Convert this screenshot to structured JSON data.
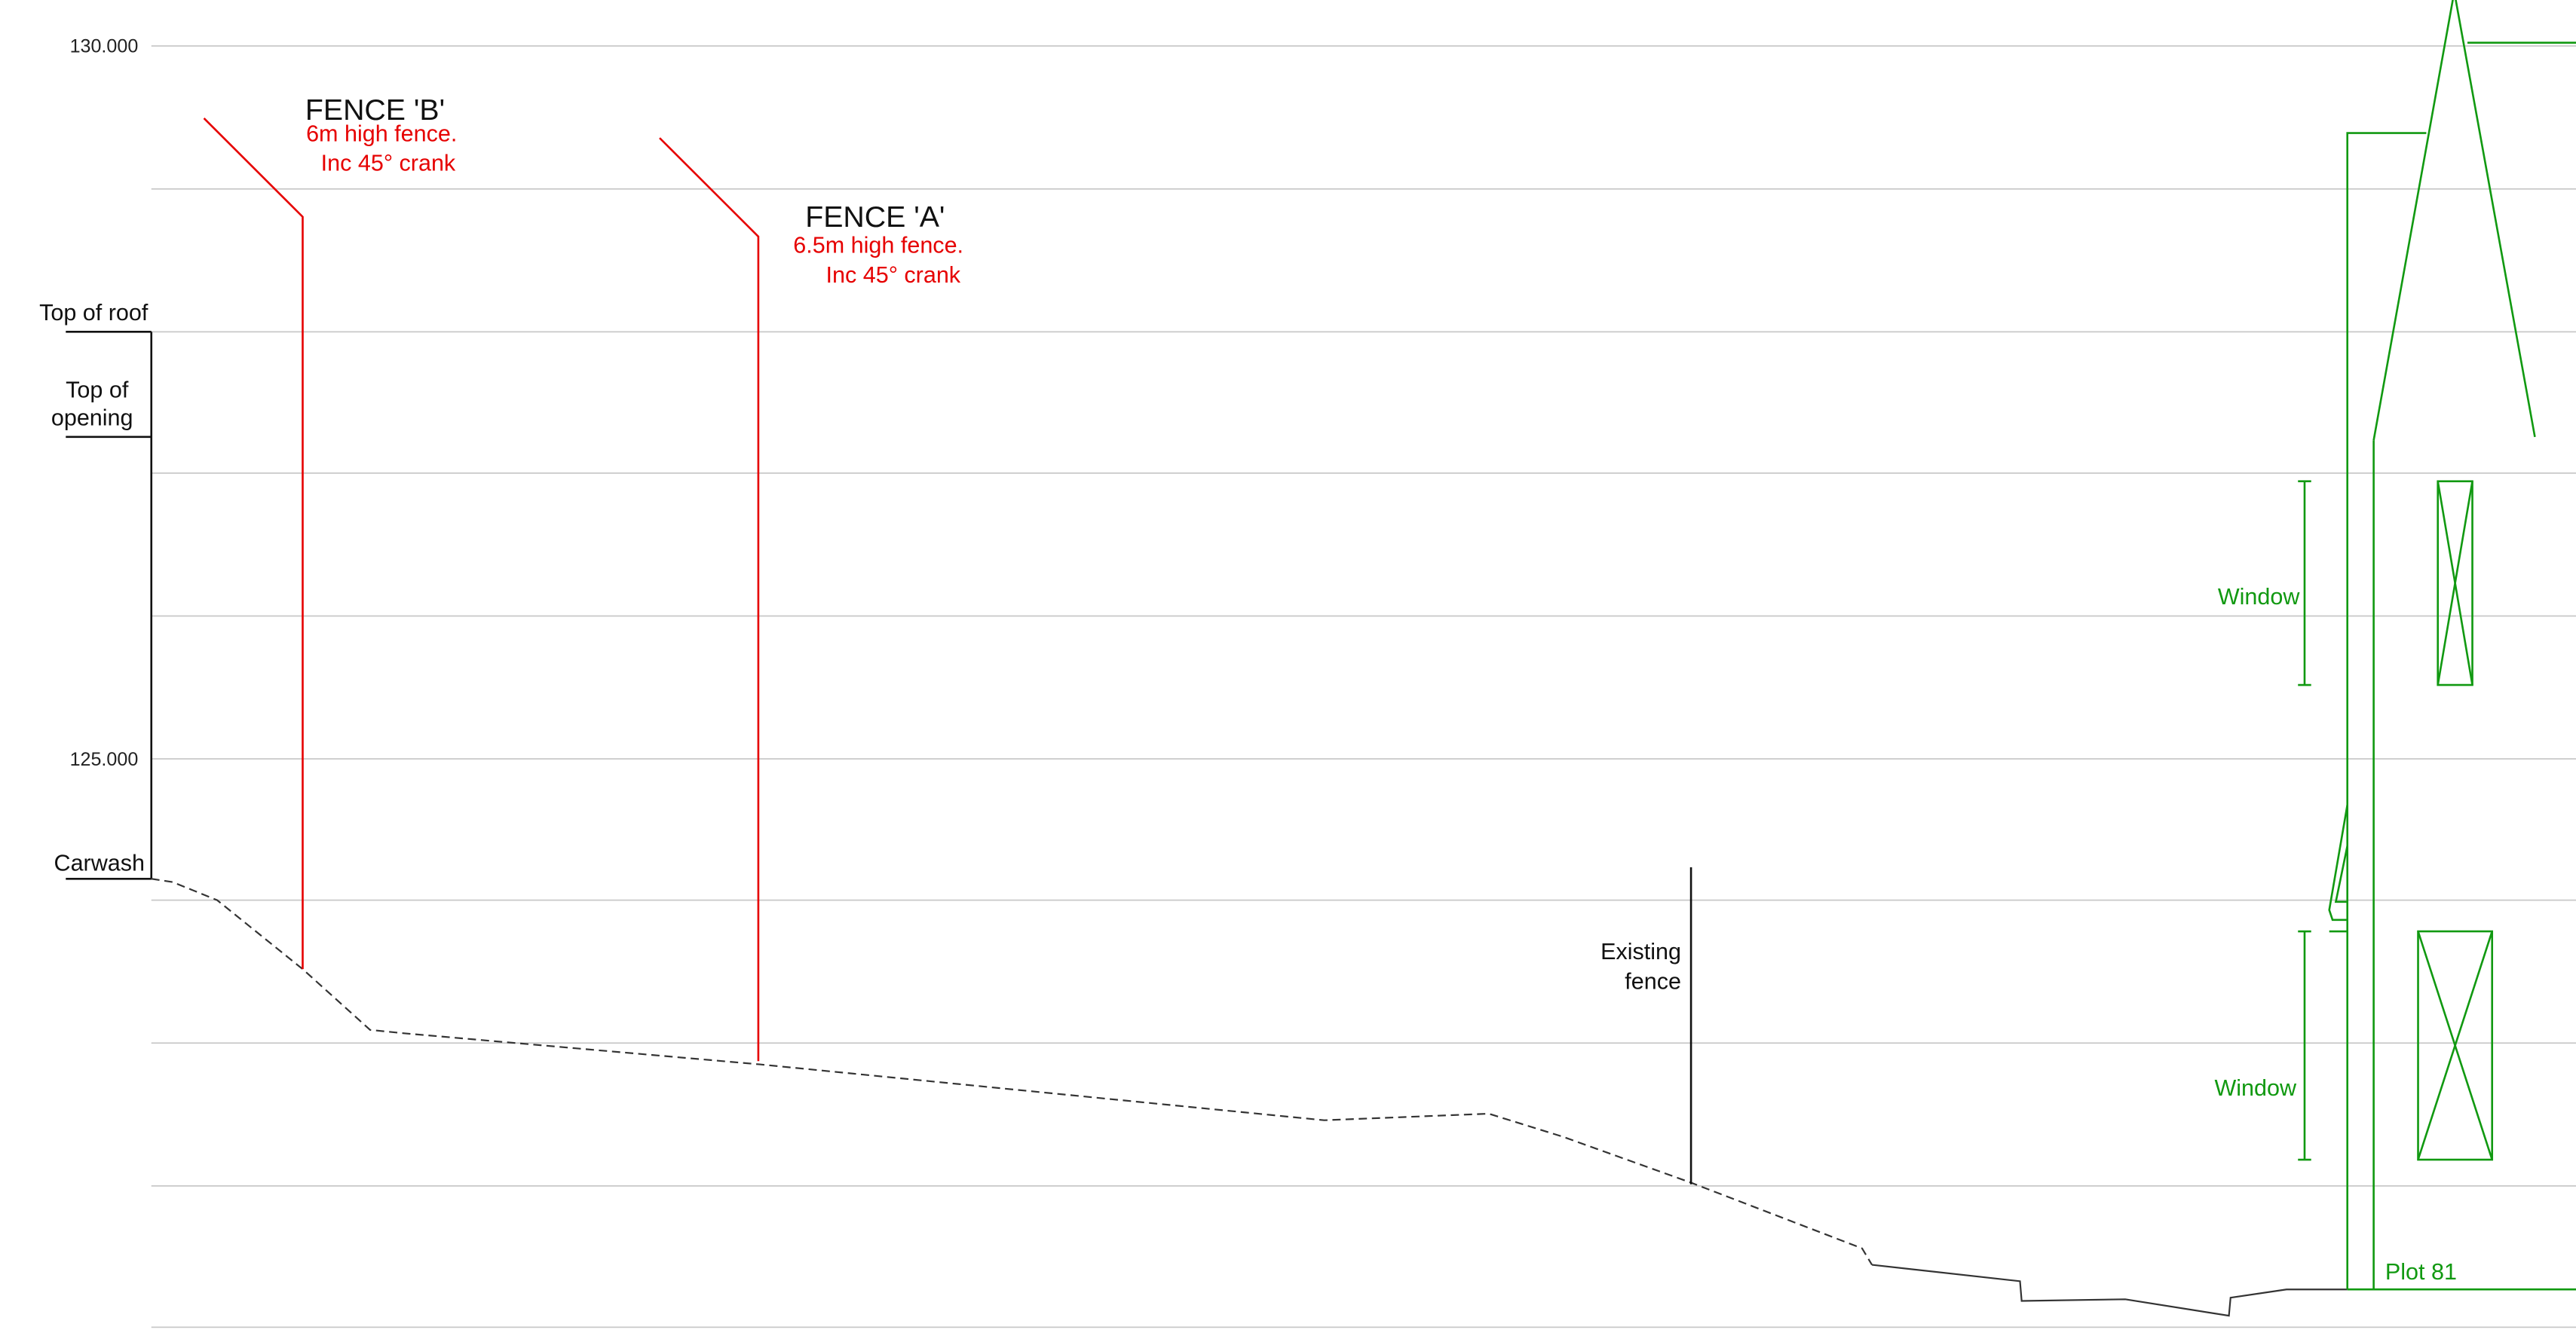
{
  "colors": {
    "grid": "#c8c8c8",
    "fence": "#e60000",
    "building": "#119911",
    "ground": "#333333",
    "annotation": "#111111"
  },
  "levels": {
    "level_130": "130.000",
    "level_125": "125.000"
  },
  "markers": {
    "top_of_roof": "Top of roof",
    "top_of_opening_line1": "Top of",
    "top_of_opening_line2": "opening",
    "carwash": "Carwash"
  },
  "fence_b": {
    "title": "FENCE 'B'",
    "note_line1": "6m high fence.",
    "note_line2": "Inc 45° crank"
  },
  "fence_a": {
    "title": "FENCE 'A'",
    "note_line1": "6.5m high fence.",
    "note_line2": "Inc 45° crank"
  },
  "existing_fence": {
    "line1": "Existing",
    "line2": "fence"
  },
  "building": {
    "window_upper": "Window",
    "window_lower": "Window",
    "plot": "Plot 81"
  }
}
